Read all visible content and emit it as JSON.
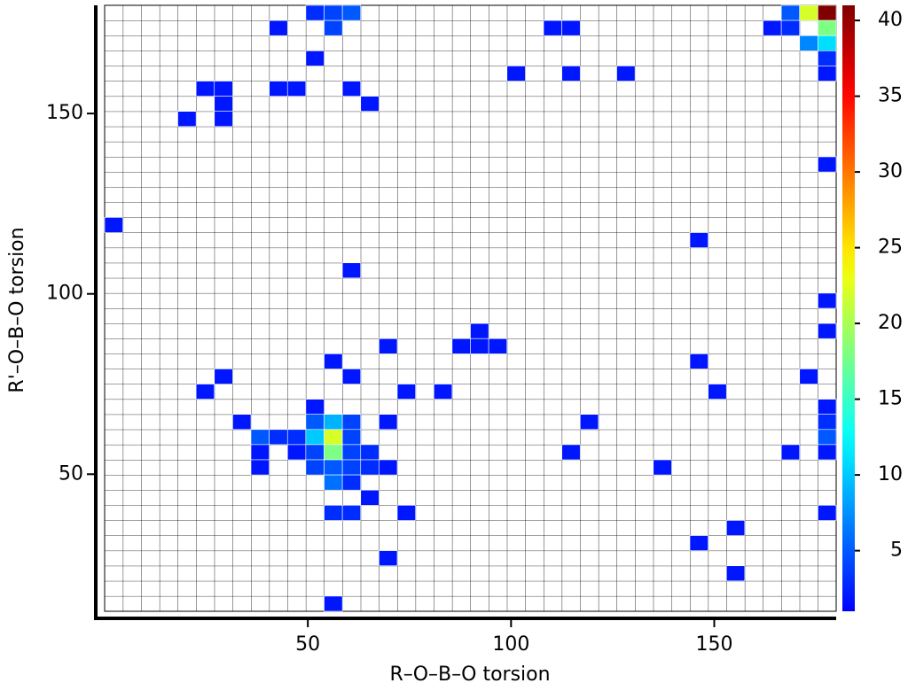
{
  "chart_data": {
    "type": "heatmap",
    "xlabel": "R–O–B–O torsion",
    "ylabel": "R'–O–B–O torsion",
    "xlim": [
      0,
      180
    ],
    "ylim": [
      12,
      180
    ],
    "xticks": [
      50,
      100,
      150
    ],
    "yticks": [
      50,
      100,
      150
    ],
    "bin_size": [
      4.5,
      4.2
    ],
    "colormap": "jet",
    "clim": [
      1,
      41
    ],
    "cticks": [
      5,
      10,
      15,
      20,
      25,
      30,
      35,
      40
    ],
    "cells": [
      [
        51.75,
        177.9,
        3
      ],
      [
        56.25,
        177.9,
        4
      ],
      [
        60.75,
        177.9,
        5
      ],
      [
        168.75,
        177.9,
        5
      ],
      [
        173.25,
        177.9,
        22
      ],
      [
        177.75,
        177.9,
        41
      ],
      [
        42.75,
        173.7,
        2
      ],
      [
        56.25,
        173.7,
        4
      ],
      [
        110.25,
        173.7,
        2
      ],
      [
        114.75,
        173.7,
        2
      ],
      [
        164.25,
        173.7,
        2
      ],
      [
        168.75,
        173.7,
        3
      ],
      [
        177.75,
        173.7,
        18
      ],
      [
        173.25,
        169.5,
        7
      ],
      [
        177.75,
        169.5,
        11
      ],
      [
        51.75,
        165.3,
        2
      ],
      [
        177.75,
        165.3,
        3
      ],
      [
        101.25,
        161.1,
        2
      ],
      [
        114.75,
        161.1,
        2
      ],
      [
        128.25,
        161.1,
        2
      ],
      [
        177.75,
        161.1,
        2
      ],
      [
        24.75,
        156.9,
        2
      ],
      [
        29.25,
        156.9,
        2
      ],
      [
        42.75,
        156.9,
        2
      ],
      [
        47.25,
        156.9,
        2
      ],
      [
        60.75,
        156.9,
        2
      ],
      [
        29.25,
        152.7,
        2
      ],
      [
        65.25,
        152.7,
        2
      ],
      [
        20.25,
        148.5,
        2
      ],
      [
        29.25,
        148.5,
        2
      ],
      [
        177.75,
        135.9,
        2
      ],
      [
        2.25,
        119.1,
        2
      ],
      [
        146.25,
        114.9,
        2
      ],
      [
        60.75,
        106.5,
        2
      ],
      [
        177.75,
        98.1,
        2
      ],
      [
        92.25,
        89.7,
        2
      ],
      [
        177.75,
        89.7,
        2
      ],
      [
        69.75,
        85.5,
        2
      ],
      [
        87.75,
        85.5,
        2
      ],
      [
        92.25,
        85.5,
        2
      ],
      [
        96.75,
        85.5,
        2
      ],
      [
        56.25,
        81.3,
        2
      ],
      [
        146.25,
        81.3,
        2
      ],
      [
        29.25,
        77.1,
        2
      ],
      [
        60.75,
        77.1,
        2
      ],
      [
        173.25,
        77.1,
        2
      ],
      [
        24.75,
        72.9,
        2
      ],
      [
        74.25,
        72.9,
        2
      ],
      [
        83.25,
        72.9,
        2
      ],
      [
        150.75,
        72.9,
        2
      ],
      [
        51.75,
        68.7,
        2
      ],
      [
        177.75,
        68.7,
        2
      ],
      [
        33.75,
        64.5,
        2
      ],
      [
        51.75,
        64.5,
        5
      ],
      [
        56.25,
        64.5,
        9
      ],
      [
        60.75,
        64.5,
        4
      ],
      [
        69.75,
        64.5,
        2
      ],
      [
        119.25,
        64.5,
        2
      ],
      [
        177.75,
        64.5,
        3
      ],
      [
        38.25,
        60.3,
        5
      ],
      [
        42.75,
        60.3,
        3
      ],
      [
        47.25,
        60.3,
        3
      ],
      [
        51.75,
        60.3,
        10
      ],
      [
        56.25,
        60.3,
        22
      ],
      [
        60.75,
        60.3,
        4
      ],
      [
        177.75,
        60.3,
        5
      ],
      [
        38.25,
        56.1,
        2
      ],
      [
        47.25,
        56.1,
        2
      ],
      [
        51.75,
        56.1,
        4
      ],
      [
        56.25,
        56.1,
        18
      ],
      [
        60.75,
        56.1,
        4
      ],
      [
        65.25,
        56.1,
        3
      ],
      [
        114.75,
        56.1,
        2
      ],
      [
        168.75,
        56.1,
        2
      ],
      [
        177.75,
        56.1,
        2
      ],
      [
        38.25,
        51.9,
        2
      ],
      [
        51.75,
        51.9,
        4
      ],
      [
        56.25,
        51.9,
        5
      ],
      [
        60.75,
        51.9,
        4
      ],
      [
        65.25,
        51.9,
        3
      ],
      [
        69.75,
        51.9,
        2
      ],
      [
        137.25,
        51.9,
        2
      ],
      [
        56.25,
        47.7,
        6
      ],
      [
        60.75,
        47.7,
        3
      ],
      [
        65.25,
        43.5,
        2
      ],
      [
        56.25,
        39.3,
        3
      ],
      [
        60.75,
        39.3,
        3
      ],
      [
        74.25,
        39.3,
        2
      ],
      [
        177.75,
        39.3,
        2
      ],
      [
        155.25,
        35.1,
        2
      ],
      [
        146.25,
        30.9,
        2
      ],
      [
        69.75,
        26.7,
        2
      ],
      [
        155.25,
        22.5,
        2
      ],
      [
        56.25,
        14.1,
        2
      ]
    ]
  }
}
